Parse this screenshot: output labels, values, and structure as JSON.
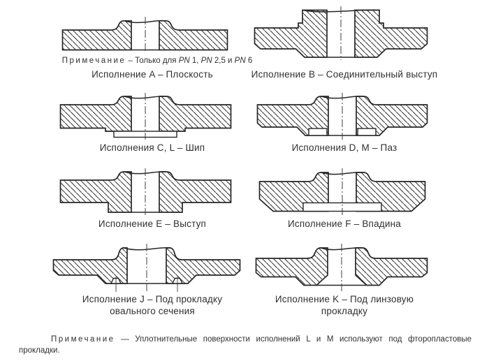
{
  "page": {
    "background": "#ffffff",
    "line_color": "#262626",
    "hatch_color": "#3a3a3a",
    "text_color": "#303030",
    "language": "ru",
    "content_type": "flange sealing-face type cross-sections (GOST style figure sheet)"
  },
  "figures": [
    {
      "id": "a",
      "caption": "Исполнение A – Плоскость",
      "note_segments": [
        {
          "t": "Примечание",
          "sp": true
        },
        {
          "t": " – Только для "
        },
        {
          "t": "PN",
          "i": true
        },
        {
          "t": " 1, "
        },
        {
          "t": "PN",
          "i": true
        },
        {
          "t": " 2,5 и "
        },
        {
          "t": "PN",
          "i": true
        },
        {
          "t": " 6"
        }
      ]
    },
    {
      "id": "b",
      "caption": "Исполнение B – Соединительный выступ"
    },
    {
      "id": "c",
      "caption": "Исполнения C, L – Шип"
    },
    {
      "id": "d",
      "caption": "Исполнения D, M – Паз"
    },
    {
      "id": "e",
      "caption": "Исполнение E – Выступ"
    },
    {
      "id": "f",
      "caption": "Исполнение F – Впадина"
    },
    {
      "id": "j",
      "caption_line1": "Исполнение J – Под прокладку",
      "caption_line2": "овального сечения"
    },
    {
      "id": "k",
      "caption_line1": "Исполнение K – Под линзовую",
      "caption_line2": "прокладку"
    }
  ],
  "footnote": {
    "line1_segments": [
      {
        "t": "Примечание",
        "sp": true
      },
      {
        "t": " — Уплотнительные поверхности исполнений L и M используют под фторопластовые"
      }
    ],
    "line2": "прокладки."
  }
}
